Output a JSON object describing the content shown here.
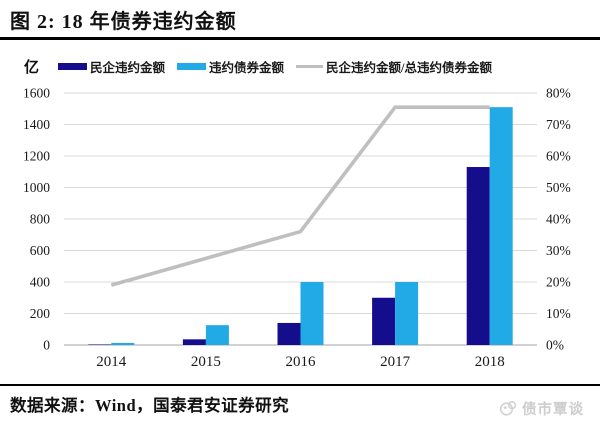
{
  "header": {
    "title": "图 2: 18 年债券违约金额"
  },
  "legend": [
    {
      "label": "民企违约金额",
      "color": "#150E8C",
      "type": "bar"
    },
    {
      "label": "违约债券金额",
      "color": "#22AAE6",
      "type": "bar"
    },
    {
      "label": "民企违约金额/总违约债券金额",
      "color": "#BFBFBF",
      "type": "line"
    }
  ],
  "chart_data": {
    "type": "combo-bar-line",
    "categories": [
      "2014",
      "2015",
      "2016",
      "2017",
      "2018"
    ],
    "series": [
      {
        "id": "private-default-amount",
        "name": "民企违约金额",
        "type": "bar",
        "axis": "left",
        "color": "#150E8C",
        "values": [
          3,
          36,
          140,
          300,
          1130
        ]
      },
      {
        "id": "total-default-amount",
        "name": "违约债券金额",
        "type": "bar",
        "axis": "left",
        "color": "#22AAE6",
        "values": [
          13,
          126,
          400,
          400,
          1510
        ]
      },
      {
        "id": "private-to-total-ratio",
        "name": "民企违约金额/总违约债券金额",
        "type": "line",
        "axis": "right",
        "color": "#BFBFBF",
        "values": [
          19,
          27.5,
          36,
          75.5,
          75.5
        ]
      }
    ],
    "left_axis": {
      "unit": "亿",
      "min": 0,
      "max": 1600,
      "step": 200,
      "ticks": [
        "0",
        "200",
        "400",
        "600",
        "800",
        "1000",
        "1200",
        "1400",
        "1600"
      ]
    },
    "right_axis": {
      "min": 0,
      "max": 80,
      "step": 10,
      "ticks": [
        "0%",
        "10%",
        "20%",
        "30%",
        "40%",
        "50%",
        "60%",
        "70%",
        "80%"
      ]
    },
    "grid": true,
    "legend_position": "top",
    "colors": {
      "gridline": "#DBDBDB",
      "baseline": "#C4C4C4",
      "tick_text": "#1A1A1A"
    }
  },
  "footer": {
    "source": "数据来源：Wind，国泰君安证券研究"
  },
  "watermark": {
    "text": "债市覃谈",
    "color": "#CDCDCD"
  }
}
